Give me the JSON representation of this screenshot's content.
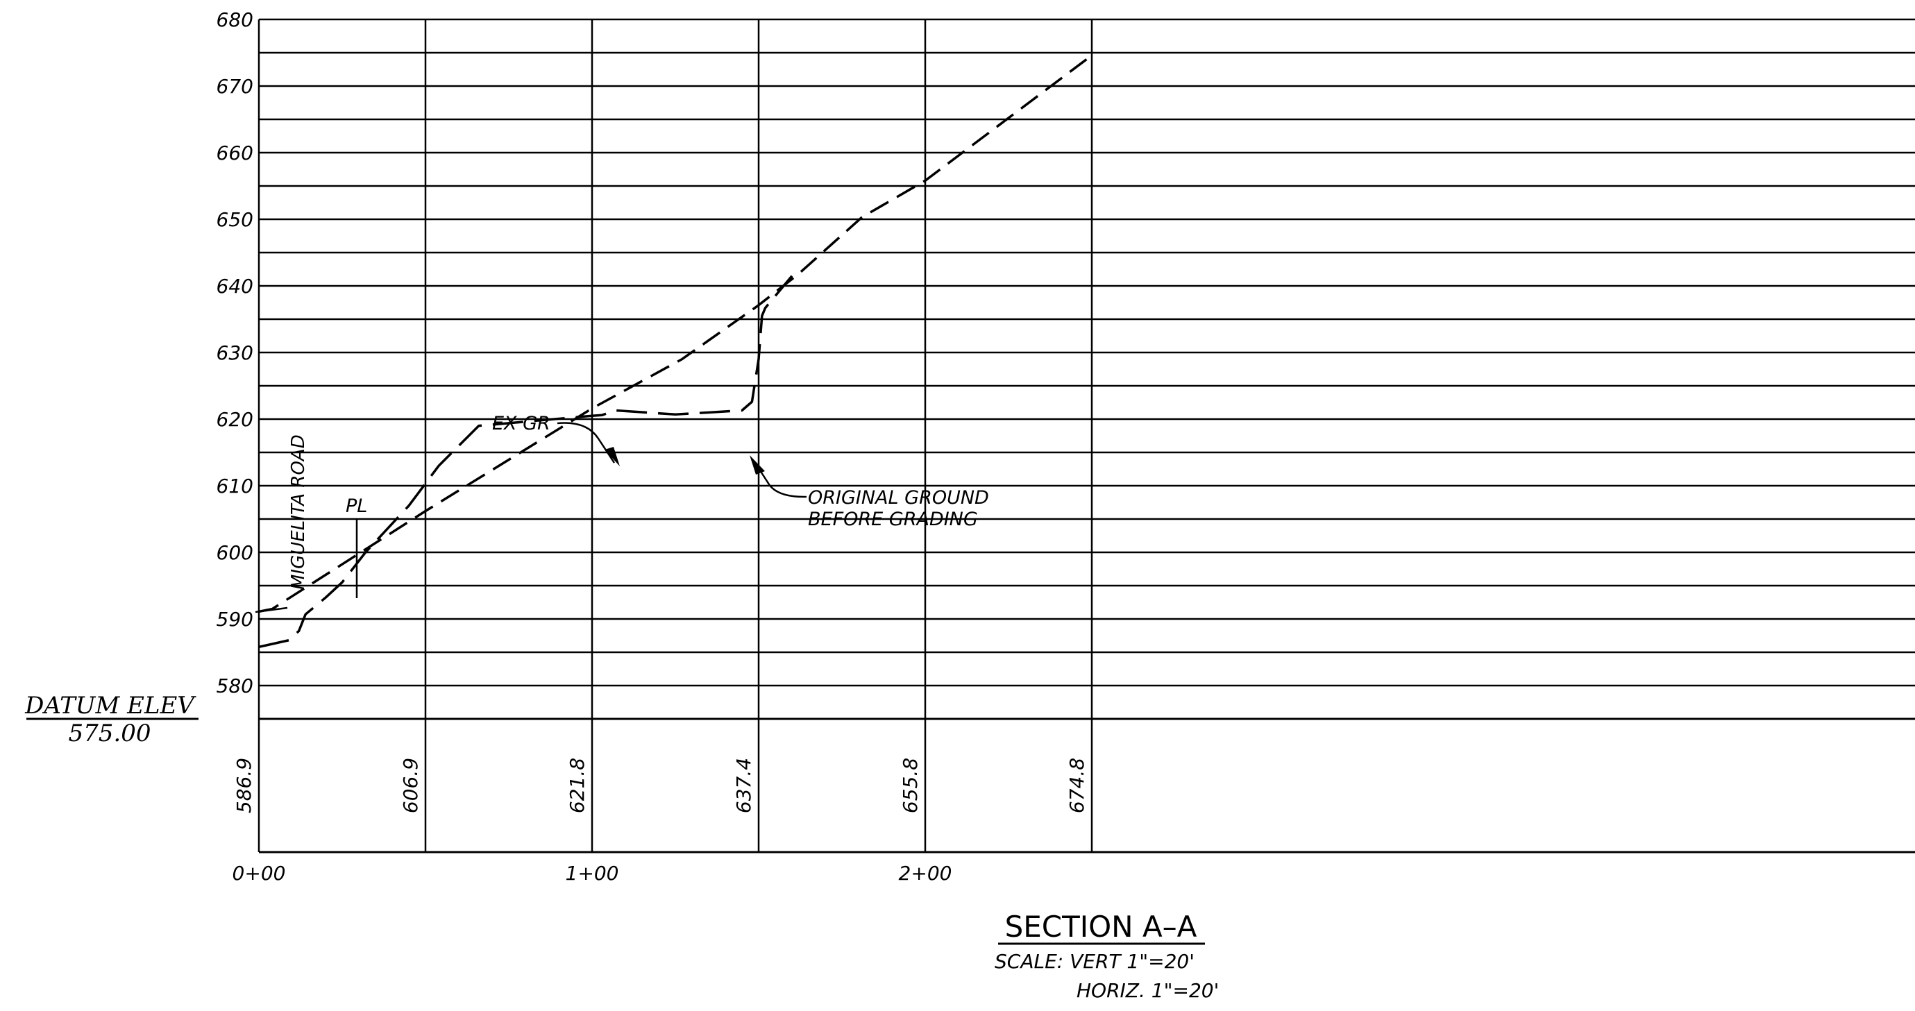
{
  "drawing": {
    "title": "SECTION  A–A",
    "scale_vert": "SCALE:  VERT 1\"=20'",
    "scale_horiz": "HORIZ. 1\"=20'",
    "datum_label": "DATUM  ELEV",
    "datum_value": "575.00",
    "label_pl": "PL",
    "label_road": "MIGUELITA  ROAD",
    "label_ex_gr": "EX  GR",
    "label_orig_line1": "ORIGINAL  GROUND",
    "label_orig_line2": "BEFORE  GRADING",
    "line_color": "#000000",
    "background": "#ffffff"
  },
  "chart_data": {
    "type": "line",
    "title": "SECTION  A–A",
    "xlabel": "",
    "ylabel": "",
    "xlim": [
      0,
      250
    ],
    "ylim": [
      575,
      680
    ],
    "grid": true,
    "y_ticks": [
      580,
      590,
      600,
      610,
      620,
      630,
      640,
      650,
      660,
      670,
      680
    ],
    "y_minor_step": 5,
    "x_ticks": [
      {
        "x": 0,
        "label": "0+00"
      },
      {
        "x": 100,
        "label": "1+00"
      },
      {
        "x": 200,
        "label": "2+00"
      }
    ],
    "x_gridlines": [
      0,
      50,
      100,
      150,
      200,
      250
    ],
    "elevation_labels": [
      {
        "x": 0,
        "value": "586.9"
      },
      {
        "x": 50,
        "value": "606.9"
      },
      {
        "x": 100,
        "value": "621.8"
      },
      {
        "x": 150,
        "value": "637.4"
      },
      {
        "x": 200,
        "value": "655.8"
      },
      {
        "x": 250,
        "value": "674.8"
      }
    ],
    "series": [
      {
        "name": "EX  GR",
        "style": "long-dash",
        "x": [
          0,
          9,
          12,
          14,
          20,
          25,
          32,
          45,
          54,
          66,
          100,
          103,
          107,
          125,
          145,
          148,
          150,
          151,
          152,
          160
        ],
        "y": [
          585.8,
          586.8,
          588.2,
          590.7,
          593.2,
          595.5,
          600,
          607,
          613,
          619,
          620.5,
          620.6,
          621.3,
          620.7,
          621.3,
          622.6,
          629,
          635.5,
          636.7,
          641.5
        ]
      },
      {
        "name": "ORIGINAL  GROUND",
        "style": "short-dash",
        "x": [
          0,
          4,
          50,
          100,
          127,
          150,
          162,
          181,
          200,
          250
        ],
        "y": [
          591.1,
          591.5,
          606.2,
          621.6,
          629,
          637.1,
          641.8,
          650.3,
          655.8,
          674.6
        ]
      }
    ]
  }
}
